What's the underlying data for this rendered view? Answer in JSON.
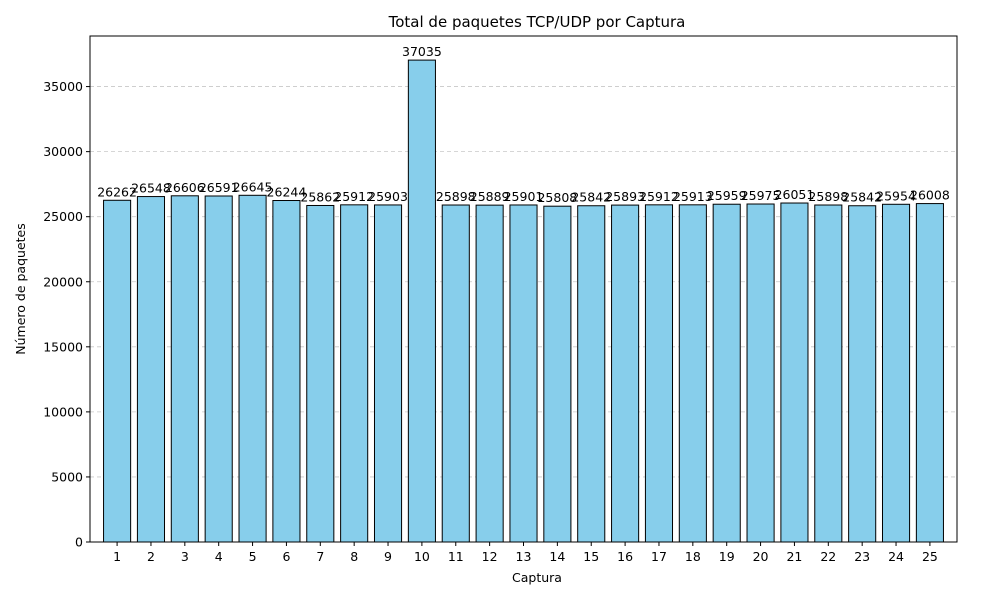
{
  "chart_data": {
    "type": "bar",
    "title": "Total de paquetes TCP/UDP por Captura",
    "xlabel": "Captura",
    "ylabel": "Número de paquetes",
    "categories": [
      "1",
      "2",
      "3",
      "4",
      "5",
      "6",
      "7",
      "8",
      "9",
      "10",
      "11",
      "12",
      "13",
      "14",
      "15",
      "16",
      "17",
      "18",
      "19",
      "20",
      "21",
      "22",
      "23",
      "24",
      "25"
    ],
    "values": [
      26262,
      26548,
      26606,
      26591,
      26645,
      26244,
      25862,
      25912,
      25903,
      37035,
      25898,
      25889,
      25901,
      25808,
      25842,
      25893,
      25912,
      25913,
      25959,
      25975,
      26051,
      25898,
      25842,
      25954,
      26008
    ],
    "ylim": [
      0,
      38887
    ],
    "yticks": [
      0,
      5000,
      10000,
      15000,
      20000,
      25000,
      30000,
      35000
    ],
    "grid": "y-dashed",
    "legend": "none",
    "colors": {
      "bar_fill": "#87CEEB",
      "bar_edge": "#000000",
      "grid": "#c8c8c8"
    }
  }
}
